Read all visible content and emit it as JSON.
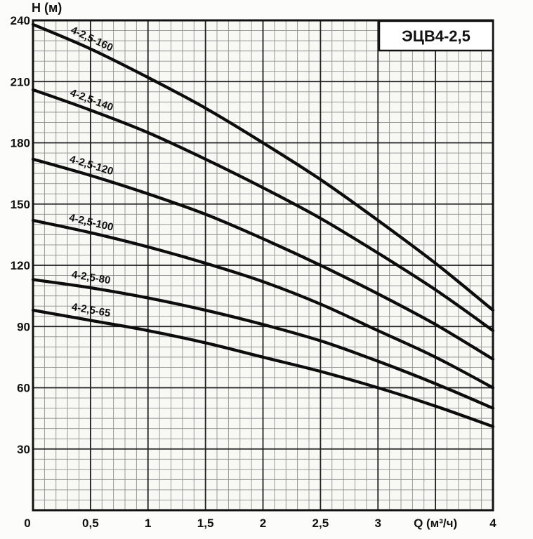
{
  "page": {
    "background": "#fcfcfa"
  },
  "chart_data": {
    "type": "line",
    "title": "ЭЦВ4-2,5",
    "xlabel": "Q (м³/ч)",
    "ylabel": "Н (м)",
    "xlim": [
      0,
      4
    ],
    "ylim": [
      0,
      240
    ],
    "x_major_step": 0.5,
    "y_major_step": 30,
    "x_minor_step": 0.1,
    "y_minor_step": 5,
    "grid": true,
    "legend_position": "labels-on-curves",
    "y_tick_values": [
      240,
      210,
      180,
      150,
      120,
      90,
      60,
      30
    ],
    "y_tick_labels": [
      "240",
      "210",
      "180",
      "150",
      "120",
      "90",
      "60",
      "30"
    ],
    "x_tick_values": [
      0,
      0.5,
      1,
      1.5,
      2,
      2.5,
      3,
      3.5,
      4
    ],
    "x_tick_labels": [
      "0",
      "0,5",
      "1",
      "1,5",
      "2",
      "2,5",
      "3",
      "Q (м³/ч)",
      "4"
    ],
    "x": [
      0,
      0.5,
      1,
      1.5,
      2,
      2.5,
      3,
      3.5,
      4
    ],
    "series": [
      {
        "name": "4-2,5-160",
        "values": [
          238,
          226,
          212,
          197,
          180,
          162,
          142,
          121,
          98
        ]
      },
      {
        "name": "4-2,5-140",
        "values": [
          206,
          196,
          185,
          172,
          158,
          143,
          126,
          108,
          88
        ]
      },
      {
        "name": "4-2,5-120",
        "values": [
          172,
          164,
          155,
          145,
          133,
          120,
          106,
          91,
          74
        ]
      },
      {
        "name": "4-2,5-100",
        "values": [
          142,
          136,
          129,
          121,
          112,
          101,
          88,
          75,
          60
        ]
      },
      {
        "name": "4-2,5-80",
        "values": [
          113,
          109,
          104,
          98,
          91,
          83,
          73,
          62,
          50
        ]
      },
      {
        "name": "4-2,5-65",
        "values": [
          98,
          93,
          88,
          82,
          75,
          68,
          60,
          51,
          41
        ]
      }
    ],
    "curve_label_anchor_q": 0.5
  },
  "colors": {
    "background": "#fcfcfa",
    "plot_background": "#f8f8f5",
    "grid_minor": "#8f8f8f",
    "grid_major": "#1f1f1f",
    "border": "#111111",
    "curve": "#0d0d0d",
    "text": "#111111",
    "title_box_fill": "#ffffff"
  }
}
